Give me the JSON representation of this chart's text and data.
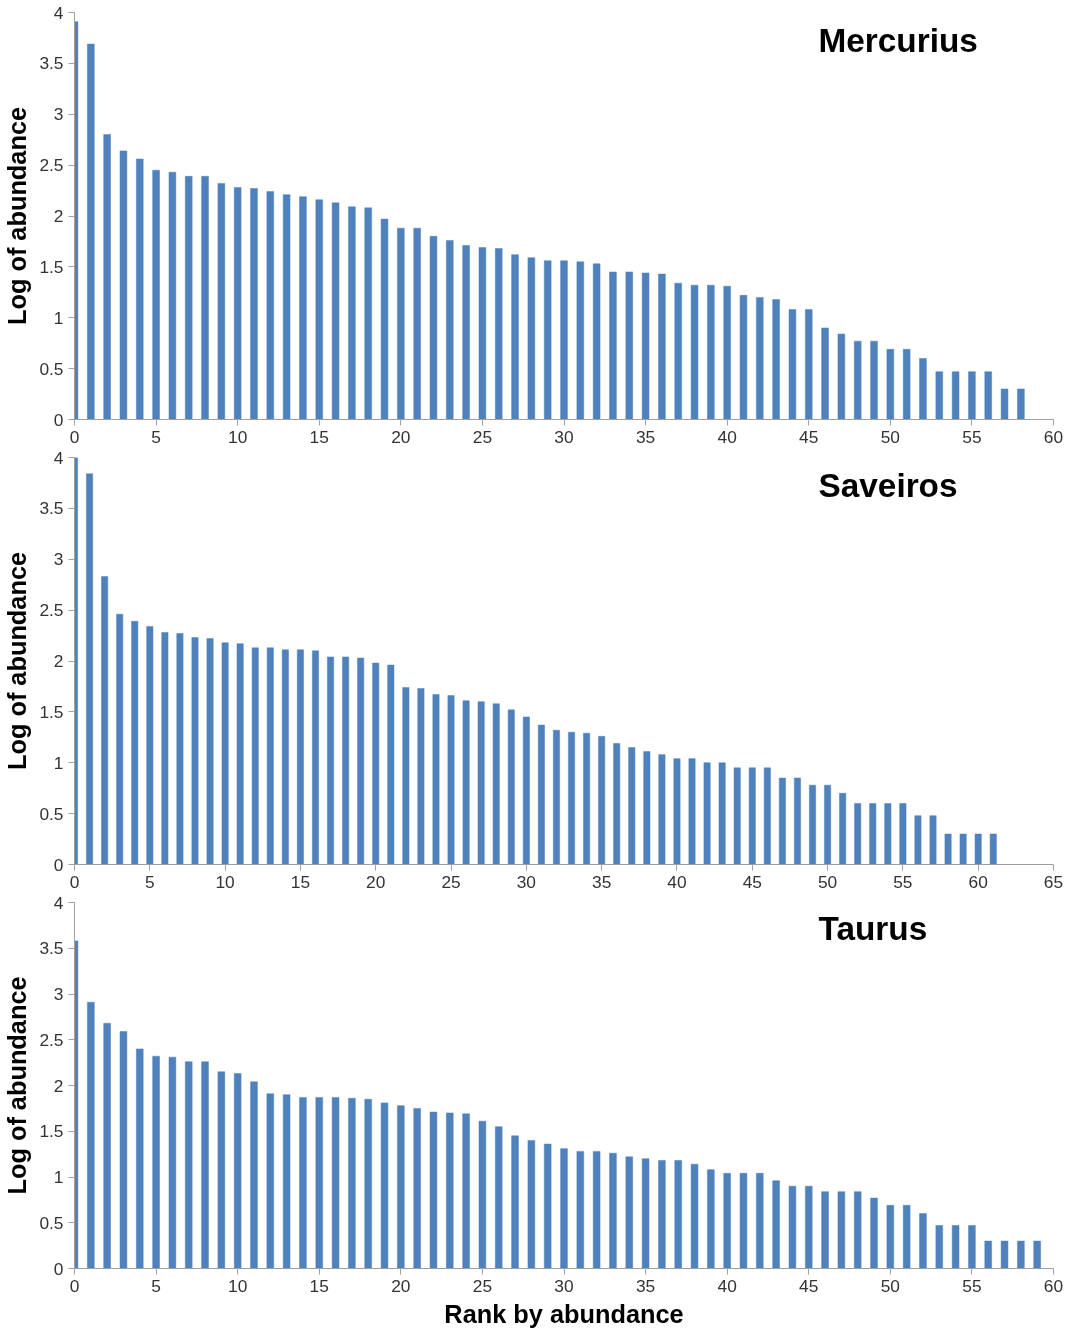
{
  "chart_data": [
    {
      "type": "bar",
      "title": "Mercurius",
      "ylabel": "Log of abundance",
      "color": "#4f81bd",
      "xlim": [
        0,
        60
      ],
      "xticks": [
        0,
        5,
        10,
        15,
        20,
        25,
        30,
        35,
        40,
        45,
        50,
        55,
        60
      ],
      "ylim": [
        0,
        4
      ],
      "yticks": [
        0,
        0.5,
        1,
        1.5,
        2,
        2.5,
        3,
        3.5,
        4
      ],
      "grid": false,
      "x": [
        0,
        1,
        2,
        3,
        4,
        5,
        6,
        7,
        8,
        9,
        10,
        11,
        12,
        13,
        14,
        15,
        16,
        17,
        18,
        19,
        20,
        21,
        22,
        23,
        24,
        25,
        26,
        27,
        28,
        29,
        30,
        31,
        32,
        33,
        34,
        35,
        36,
        37,
        38,
        39,
        40,
        41,
        42,
        43,
        44,
        45,
        46,
        47,
        48,
        49,
        50,
        51,
        52,
        53,
        54,
        55,
        56,
        57,
        58
      ],
      "values": [
        3.91,
        3.69,
        2.8,
        2.64,
        2.56,
        2.45,
        2.43,
        2.39,
        2.39,
        2.32,
        2.28,
        2.27,
        2.24,
        2.21,
        2.19,
        2.16,
        2.13,
        2.09,
        2.08,
        1.97,
        1.88,
        1.88,
        1.8,
        1.76,
        1.71,
        1.69,
        1.68,
        1.62,
        1.59,
        1.56,
        1.56,
        1.55,
        1.53,
        1.45,
        1.45,
        1.44,
        1.43,
        1.34,
        1.32,
        1.32,
        1.31,
        1.22,
        1.2,
        1.18,
        1.08,
        1.08,
        0.9,
        0.84,
        0.77,
        0.77,
        0.69,
        0.69,
        0.6,
        0.47,
        0.47,
        0.47,
        0.47,
        0.3,
        0.3
      ]
    },
    {
      "type": "bar",
      "title": "Saveiros",
      "ylabel": "Log of abundance",
      "color": "#4f81bd",
      "xlim": [
        0,
        65
      ],
      "xticks": [
        0,
        5,
        10,
        15,
        20,
        25,
        30,
        35,
        40,
        45,
        50,
        55,
        60,
        65
      ],
      "ylim": [
        0,
        4
      ],
      "yticks": [
        0,
        0.5,
        1,
        1.5,
        2,
        2.5,
        3,
        3.5,
        4
      ],
      "grid": false,
      "x": [
        0,
        1,
        2,
        3,
        4,
        5,
        6,
        7,
        8,
        9,
        10,
        11,
        12,
        13,
        14,
        15,
        16,
        17,
        18,
        19,
        20,
        21,
        22,
        23,
        24,
        25,
        26,
        27,
        28,
        29,
        30,
        31,
        32,
        33,
        34,
        35,
        36,
        37,
        38,
        39,
        40,
        41,
        42,
        43,
        44,
        45,
        46,
        47,
        48,
        49,
        50,
        51,
        52,
        53,
        54,
        55,
        56,
        57,
        58,
        59,
        60,
        61
      ],
      "values": [
        4.0,
        3.84,
        2.83,
        2.46,
        2.39,
        2.34,
        2.28,
        2.27,
        2.23,
        2.22,
        2.18,
        2.17,
        2.13,
        2.13,
        2.11,
        2.11,
        2.1,
        2.04,
        2.04,
        2.03,
        1.98,
        1.96,
        1.74,
        1.73,
        1.67,
        1.66,
        1.61,
        1.6,
        1.58,
        1.52,
        1.45,
        1.37,
        1.32,
        1.3,
        1.29,
        1.26,
        1.19,
        1.15,
        1.11,
        1.08,
        1.04,
        1.04,
        1.0,
        1.0,
        0.95,
        0.95,
        0.95,
        0.85,
        0.85,
        0.78,
        0.78,
        0.7,
        0.6,
        0.6,
        0.6,
        0.6,
        0.48,
        0.48,
        0.3,
        0.3,
        0.3,
        0.3
      ]
    },
    {
      "type": "bar",
      "title": "Taurus",
      "ylabel": "Log of abundance",
      "xlabel": "Rank by abundance",
      "color": "#4f81bd",
      "xlim": [
        0,
        60
      ],
      "xticks": [
        0,
        5,
        10,
        15,
        20,
        25,
        30,
        35,
        40,
        45,
        50,
        55,
        60
      ],
      "ylim": [
        0,
        4
      ],
      "yticks": [
        0,
        0.5,
        1,
        1.5,
        2,
        2.5,
        3,
        3.5,
        4
      ],
      "grid": false,
      "x": [
        0,
        1,
        2,
        3,
        4,
        5,
        6,
        7,
        8,
        9,
        10,
        11,
        12,
        13,
        14,
        15,
        16,
        17,
        18,
        19,
        20,
        21,
        22,
        23,
        24,
        25,
        26,
        27,
        28,
        29,
        30,
        31,
        32,
        33,
        34,
        35,
        36,
        37,
        38,
        39,
        40,
        41,
        42,
        43,
        44,
        45,
        46,
        47,
        48,
        49,
        50,
        51,
        52,
        53,
        54,
        55,
        56,
        57,
        58,
        59
      ],
      "values": [
        3.58,
        2.91,
        2.68,
        2.59,
        2.4,
        2.32,
        2.31,
        2.26,
        2.26,
        2.15,
        2.13,
        2.04,
        1.91,
        1.9,
        1.87,
        1.87,
        1.87,
        1.86,
        1.85,
        1.81,
        1.78,
        1.75,
        1.71,
        1.7,
        1.69,
        1.61,
        1.55,
        1.45,
        1.4,
        1.36,
        1.31,
        1.28,
        1.28,
        1.26,
        1.22,
        1.2,
        1.18,
        1.18,
        1.14,
        1.08,
        1.04,
        1.04,
        1.04,
        0.96,
        0.9,
        0.9,
        0.84,
        0.84,
        0.84,
        0.77,
        0.69,
        0.69,
        0.6,
        0.47,
        0.47,
        0.47,
        0.3,
        0.3,
        0.3,
        0.3
      ]
    }
  ]
}
